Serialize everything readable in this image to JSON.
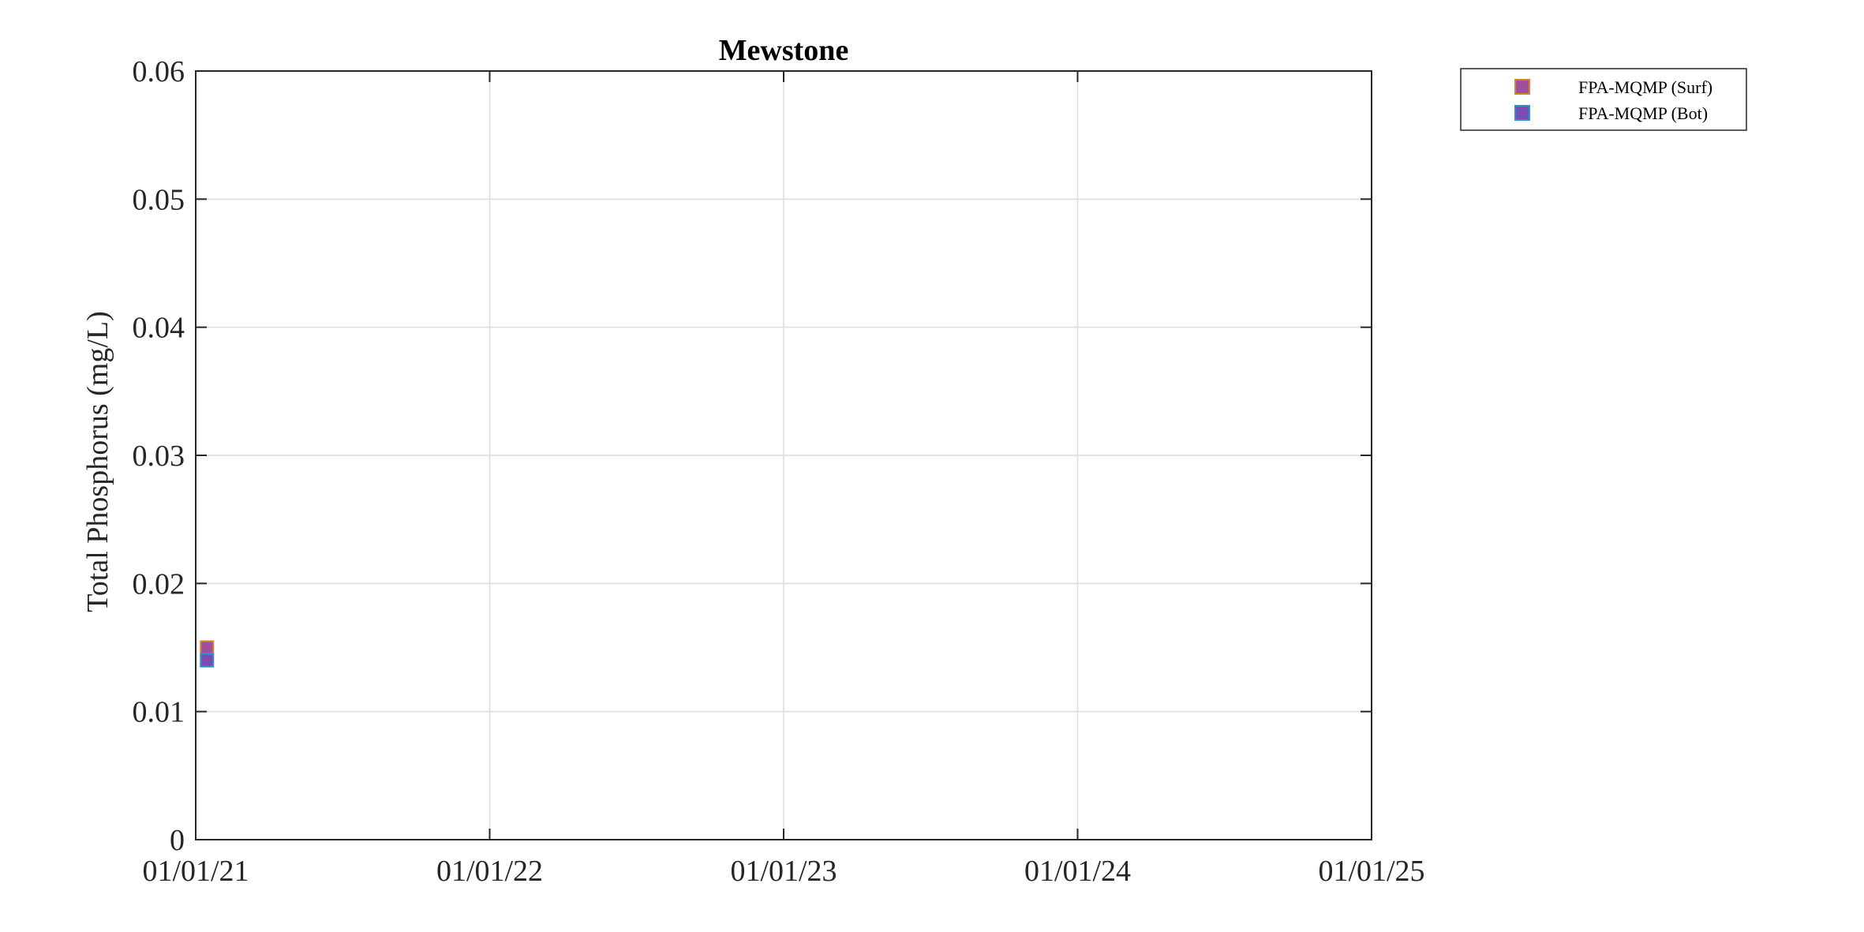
{
  "chart_data": {
    "type": "scatter",
    "title": "Mewstone",
    "xlabel": "",
    "ylabel": "Total Phosphorus (mg/L)",
    "x_ticks": [
      "01/01/21",
      "01/01/22",
      "01/01/23",
      "01/01/24",
      "01/01/25"
    ],
    "xlim": [
      "2021-01-01",
      "2025-01-01"
    ],
    "y_ticks": [
      "0",
      "0.01",
      "0.02",
      "0.03",
      "0.04",
      "0.05",
      "0.06"
    ],
    "ylim": [
      0,
      0.06
    ],
    "grid": true,
    "legend_position": "outside top-right",
    "series": [
      {
        "name": "FPA-MQMP (Surf)",
        "marker": "square",
        "fill": "#9e4f9e",
        "edge": "#d9822b",
        "points": [
          {
            "x": "2021-01-15",
            "y": 0.015
          }
        ]
      },
      {
        "name": "FPA-MQMP (Bot)",
        "marker": "square",
        "fill": "#7b4bb0",
        "edge": "#2f8fd0",
        "points": [
          {
            "x": "2021-01-15",
            "y": 0.014
          }
        ]
      }
    ]
  }
}
